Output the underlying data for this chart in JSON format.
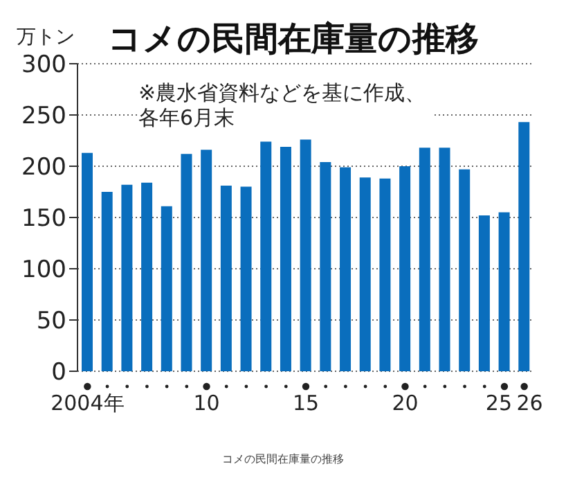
{
  "chart_data": {
    "type": "bar",
    "title": "コメの民間在庫量の推移",
    "ylabel": "万トン",
    "categories": [
      "2004年",
      null,
      null,
      null,
      null,
      null,
      "10",
      null,
      null,
      null,
      null,
      "15",
      null,
      null,
      null,
      null,
      "20",
      null,
      null,
      null,
      null,
      "25",
      "26"
    ],
    "values": [
      213,
      175,
      182,
      184,
      161,
      212,
      216,
      181,
      180,
      224,
      219,
      226,
      204,
      199,
      189,
      188,
      200,
      218,
      218,
      197,
      152,
      155,
      243
    ],
    "color": "#0a6ebd",
    "ylim": [
      0,
      300
    ],
    "yticks": [
      0,
      50,
      100,
      150,
      200,
      250,
      300
    ],
    "grid": "y",
    "annotations": [
      "※農水省資料などを基に作成、各年6月末",
      "コメの民間在庫量の推移"
    ]
  }
}
